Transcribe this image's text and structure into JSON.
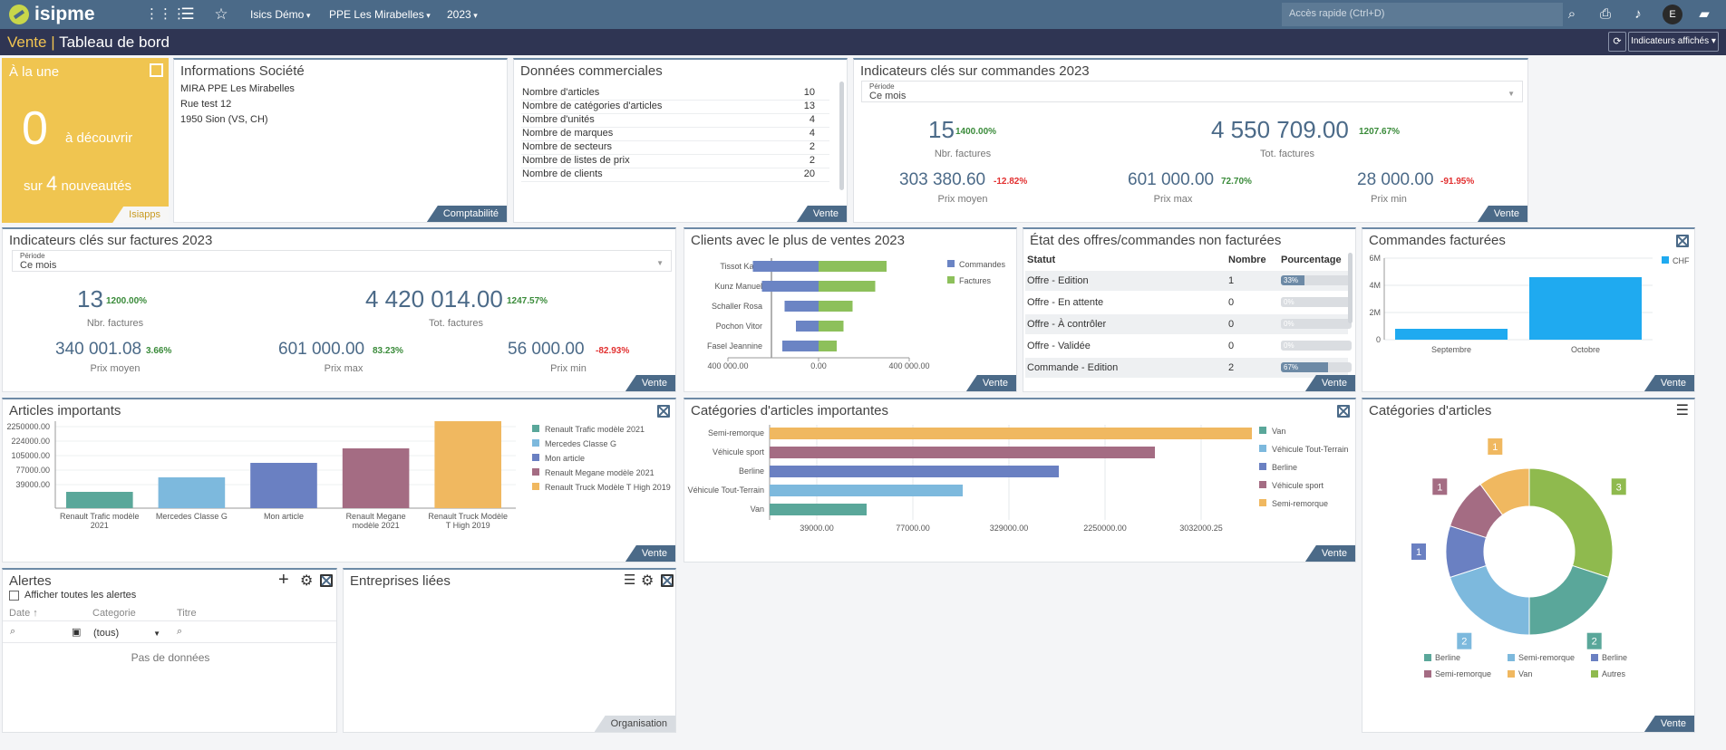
{
  "topbar": {
    "logo": "isipme",
    "menus": [
      "Isics Démo",
      "PPE Les Mirabelles",
      "2023"
    ],
    "quick_access_placeholder": "Accès rapide (Ctrl+D)",
    "avatar": "E"
  },
  "titlebar": {
    "section": "Vente",
    "separator": "|",
    "page": "Tableau de bord",
    "indicators_button": "Indicateurs affichés"
  },
  "alaune": {
    "title": "À la une",
    "count": "0",
    "discover": "à découvrir",
    "sur": "sur",
    "total": "4",
    "news": "nouveautés",
    "tag": "Isiapps"
  },
  "company": {
    "title": "Informations Société",
    "lines": [
      "MIRA PPE Les Mirabelles",
      "Rue test 12",
      "1950 Sion (VS, CH)"
    ],
    "tag": "Comptabilité"
  },
  "commercial": {
    "title": "Données commerciales",
    "rows": [
      {
        "label": "Nombre d'articles",
        "value": "10"
      },
      {
        "label": "Nombre de catégories d'articles",
        "value": "13"
      },
      {
        "label": "Nombre d'unités",
        "value": "4"
      },
      {
        "label": "Nombre de marques",
        "value": "4"
      },
      {
        "label": "Nombre de secteurs",
        "value": "2"
      },
      {
        "label": "Nombre de listes de prix",
        "value": "2"
      },
      {
        "label": "Nombre de clients",
        "value": "20"
      }
    ],
    "tag": "Vente"
  },
  "kpi_orders": {
    "title": "Indicateurs clés sur commandes 2023",
    "period_label": "Période",
    "period_value": "Ce mois",
    "nbr": "15",
    "nbr_pct": "1400.00%",
    "nbr_label": "Nbr. factures",
    "tot": "4 550 709.00",
    "tot_pct": "1207.67%",
    "tot_label": "Tot. factures",
    "avg": "303 380.60",
    "avg_pct": "-12.82%",
    "avg_label": "Prix moyen",
    "max": "601 000.00",
    "max_pct": "72.70%",
    "max_label": "Prix max",
    "min": "28 000.00",
    "min_pct": "-91.95%",
    "min_label": "Prix min",
    "tag": "Vente"
  },
  "kpi_invoices": {
    "title": "Indicateurs clés sur factures 2023",
    "period_label": "Période",
    "period_value": "Ce mois",
    "nbr": "13",
    "nbr_pct": "1200.00%",
    "nbr_label": "Nbr. factures",
    "tot": "4 420 014.00",
    "tot_pct": "1247.57%",
    "tot_label": "Tot. factures",
    "avg": "340 001.08",
    "avg_pct": "3.66%",
    "avg_label": "Prix moyen",
    "max": "601 000.00",
    "max_pct": "83.23%",
    "max_label": "Prix max",
    "min": "56 000.00",
    "min_pct": "-82.93%",
    "min_label": "Prix min",
    "tag": "Vente"
  },
  "clients": {
    "title": "Clients avec le plus de ventes 2023",
    "tag": "Vente",
    "legend": [
      "Commandes",
      "Factures"
    ],
    "ticks": [
      "400 000.00",
      "0.00",
      "400 000.00"
    ]
  },
  "offers": {
    "title": "État des offres/commandes non facturées",
    "headers": [
      "Statut",
      "Nombre",
      "Pourcentage"
    ],
    "rows": [
      {
        "status": "Offre - Edition",
        "count": "1",
        "pct": "33%",
        "fill": 0.33
      },
      {
        "status": "Offre - En attente",
        "count": "0",
        "pct": "0%",
        "fill": 0
      },
      {
        "status": "Offre - À contrôler",
        "count": "0",
        "pct": "0%",
        "fill": 0
      },
      {
        "status": "Offre - Validée",
        "count": "0",
        "pct": "0%",
        "fill": 0
      },
      {
        "status": "Commande - Edition",
        "count": "2",
        "pct": "67%",
        "fill": 0.67
      }
    ],
    "tag": "Vente"
  },
  "billed": {
    "title": "Commandes facturées",
    "tag": "Vente",
    "legend": "CHF",
    "yticks": [
      "6M",
      "4M",
      "2M",
      "0"
    ]
  },
  "articles": {
    "title": "Articles importants",
    "tag": "Vente",
    "yticks": [
      "2250000.00",
      "224000.00",
      "105000.00",
      "77000.00",
      "39000.00"
    ],
    "legend": [
      "Renault Trafic modèle 2021",
      "Mercedes Classe G",
      "Mon article",
      "Renault Megane modèle 2021",
      "Renault Truck Modèle T High 2019"
    ],
    "xlabels": [
      [
        "Renault Trafic modèle",
        "2021"
      ],
      [
        "Mercedes Classe G",
        ""
      ],
      [
        "Mon article",
        ""
      ],
      [
        "Renault Megane",
        "modèle 2021"
      ],
      [
        "Renault Truck Modèle",
        "T High 2019"
      ]
    ]
  },
  "categories_imp": {
    "title": "Catégories d'articles importantes",
    "tag": "Vente",
    "legend": [
      "Van",
      "Véhicule Tout-Terrain",
      "Berline",
      "Véhicule sport",
      "Semi-remorque"
    ],
    "xticks": [
      "39000.00",
      "77000.00",
      "329000.00",
      "2250000.00",
      "3032000.25"
    ]
  },
  "categories": {
    "title": "Catégories d'articles",
    "tag": "Vente",
    "legend": [
      "Berline",
      "Semi-remorque",
      "Berline",
      "Semi-remorque",
      "Van",
      "Autres"
    ]
  },
  "alerts": {
    "title": "Alertes",
    "show_all": "Afficher toutes les alertes",
    "col_date": "Date",
    "col_cat": "Categorie",
    "col_title": "Titre",
    "cat_filter": "(tous)",
    "empty": "Pas de données"
  },
  "linked": {
    "title": "Entreprises liées",
    "tag": "Organisation"
  },
  "chart_data": [
    {
      "type": "bar",
      "title": "Clients avec le plus de ventes 2023",
      "orientation": "horizontal-diverging",
      "categories": [
        "Tissot Katia",
        "Kunz Manuel",
        "Schaller Rosa",
        "Pochon Vitor",
        "Fasel Jeannine"
      ],
      "series": [
        {
          "name": "Commandes",
          "values": [
            -290000,
            -250000,
            -150000,
            -100000,
            -160000
          ],
          "color": "#6b84c4"
        },
        {
          "name": "Factures",
          "values": [
            300000,
            250000,
            150000,
            110000,
            80000
          ],
          "color": "#8dc05b"
        }
      ],
      "xlim": [
        -400000,
        400000
      ]
    },
    {
      "type": "bar",
      "title": "Commandes facturées",
      "categories": [
        "Septembre",
        "Octobre"
      ],
      "series": [
        {
          "name": "CHF",
          "values": [
            800000,
            4600000
          ],
          "color": "#1faaf0"
        }
      ],
      "ylim": [
        0,
        6000000
      ]
    },
    {
      "type": "bar",
      "title": "Articles importants",
      "categories": [
        "Renault Trafic modèle 2021",
        "Mercedes Classe G",
        "Mon article",
        "Renault Megane modèle 2021",
        "Renault Truck Modèle T High 2019"
      ],
      "values": [
        39000,
        77000,
        105000,
        224000,
        2250000
      ],
      "colors": [
        "#5aa79a",
        "#7db9dd",
        "#6a80c2",
        "#a46c83",
        "#f0b860"
      ]
    },
    {
      "type": "bar",
      "title": "Catégories d'articles importantes",
      "orientation": "horizontal",
      "categories": [
        "Semi-remorque",
        "Véhicule sport",
        "Berline",
        "Véhicule Tout-Terrain",
        "Van"
      ],
      "values": [
        3032000.25,
        2250000,
        329000,
        77000,
        39000
      ],
      "colors": [
        "#f0b860",
        "#a46c83",
        "#6a80c2",
        "#7db9dd",
        "#5aa79a"
      ]
    },
    {
      "type": "pie",
      "title": "Catégories d'articles",
      "donut": true,
      "slices": [
        {
          "label": "Autres",
          "value": 3,
          "color": "#8fba4e"
        },
        {
          "label": "Berline",
          "value": 2,
          "color": "#5aa79a"
        },
        {
          "label": "Semi-remorque",
          "value": 2,
          "color": "#7db9dd"
        },
        {
          "label": "Berline",
          "value": 1,
          "color": "#6a80c2"
        },
        {
          "label": "Semi-remorque",
          "value": 1,
          "color": "#a46c83"
        },
        {
          "label": "Van",
          "value": 1,
          "color": "#f0b860"
        }
      ]
    }
  ]
}
